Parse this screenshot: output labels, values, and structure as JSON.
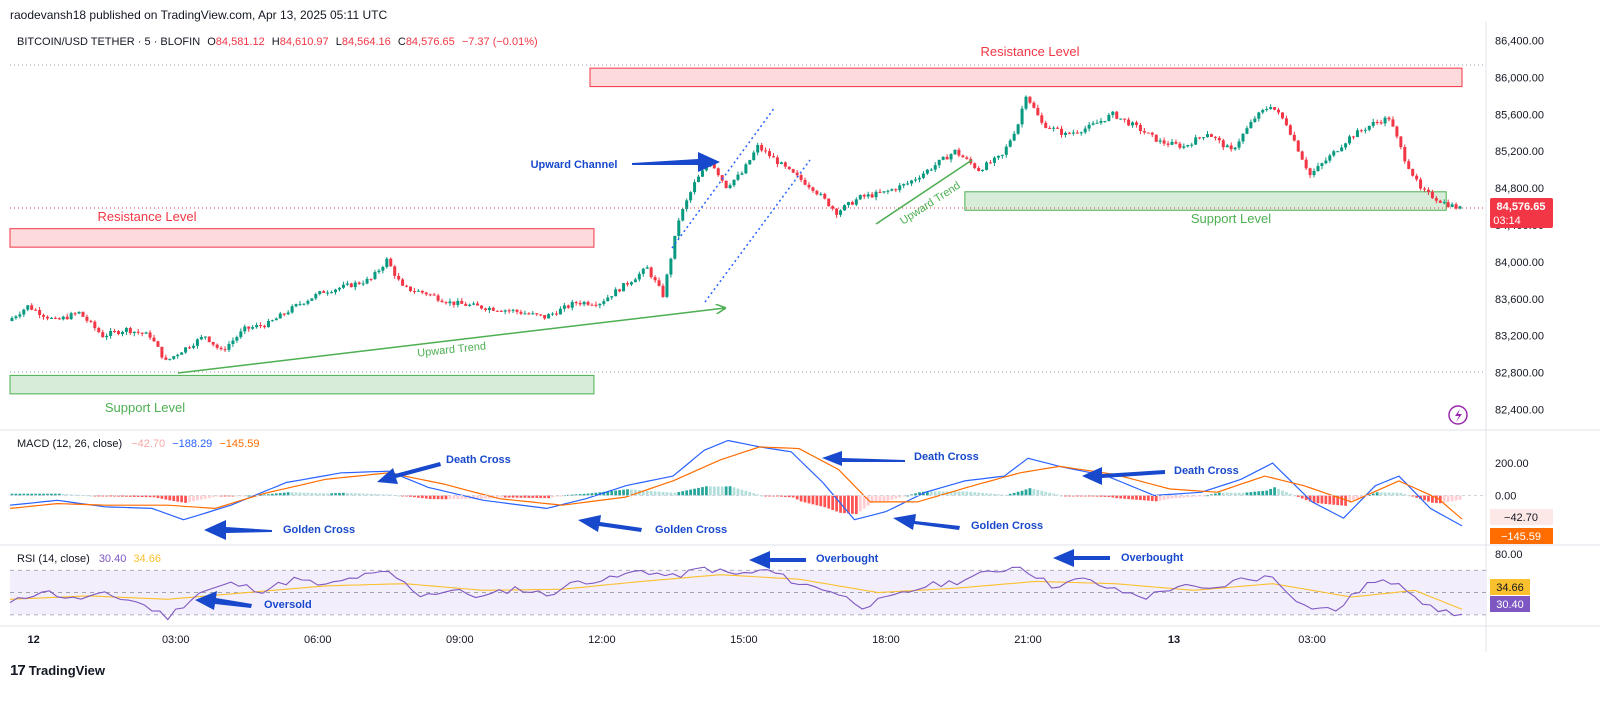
{
  "header": {
    "published_line": "raodevansh18 published on TradingView.com, Apr 13, 2025 05:11 UTC"
  },
  "footer": {
    "brand": "TradingView",
    "logo_glyph": "17"
  },
  "colors": {
    "up": "#089981",
    "down": "#f23645",
    "macd": "#2962ff",
    "signal": "#ff6d00",
    "rsi": "#7e57c2",
    "rsi_ma": "#fbc02d",
    "support": "#4caf50",
    "resistance": "#f23645",
    "annotation": "#1848cc"
  },
  "chart_data": [
    {
      "type": "candlestick",
      "symbol_line": {
        "symbol": "BITCOIN/USD TETHER · 5 · BLOFIN",
        "o_label": "O",
        "o": "84,581.12",
        "h_label": "H",
        "h": "84,610.97",
        "l_label": "L",
        "l": "84,564.16",
        "c_label": "C",
        "c": "84,576.65",
        "change": "−7.37 (−0.01%)"
      },
      "ylim": [
        82200,
        86600
      ],
      "y_ticks": [
        "86,400.00",
        "86,000.00",
        "85,600.00",
        "85,200.00",
        "84,800.00",
        "84,400.00",
        "84,000.00",
        "83,600.00",
        "83,200.00",
        "82,800.00",
        "82,400.00"
      ],
      "x_ticks": [
        "12",
        "03:00",
        "06:00",
        "09:00",
        "12:00",
        "15:00",
        "18:00",
        "21:00",
        "13",
        "03:00"
      ],
      "last_price_label": "84,576.65",
      "countdown_label": "03:14",
      "price_path": [
        {
          "t": 0,
          "p": 83360
        },
        {
          "t": 5,
          "p": 83520
        },
        {
          "t": 12,
          "p": 83360
        },
        {
          "t": 18,
          "p": 83450
        },
        {
          "t": 24,
          "p": 83200
        },
        {
          "t": 30,
          "p": 83270
        },
        {
          "t": 36,
          "p": 83200
        },
        {
          "t": 40,
          "p": 82920
        },
        {
          "t": 44,
          "p": 83040
        },
        {
          "t": 50,
          "p": 83200
        },
        {
          "t": 54,
          "p": 83030
        },
        {
          "t": 60,
          "p": 83270
        },
        {
          "t": 66,
          "p": 83330
        },
        {
          "t": 74,
          "p": 83550
        },
        {
          "t": 80,
          "p": 83680
        },
        {
          "t": 86,
          "p": 83740
        },
        {
          "t": 92,
          "p": 83810
        },
        {
          "t": 96,
          "p": 84020
        },
        {
          "t": 100,
          "p": 83720
        },
        {
          "t": 106,
          "p": 83660
        },
        {
          "t": 112,
          "p": 83560
        },
        {
          "t": 120,
          "p": 83510
        },
        {
          "t": 128,
          "p": 83470
        },
        {
          "t": 136,
          "p": 83400
        },
        {
          "t": 144,
          "p": 83560
        },
        {
          "t": 150,
          "p": 83560
        },
        {
          "t": 156,
          "p": 83740
        },
        {
          "t": 162,
          "p": 83930
        },
        {
          "t": 166,
          "p": 83640
        },
        {
          "t": 170,
          "p": 84460
        },
        {
          "t": 174,
          "p": 84850
        },
        {
          "t": 178,
          "p": 85100
        },
        {
          "t": 182,
          "p": 84820
        },
        {
          "t": 186,
          "p": 84960
        },
        {
          "t": 190,
          "p": 85250
        },
        {
          "t": 194,
          "p": 85120
        },
        {
          "t": 198,
          "p": 84980
        },
        {
          "t": 204,
          "p": 84800
        },
        {
          "t": 210,
          "p": 84540
        },
        {
          "t": 216,
          "p": 84700
        },
        {
          "t": 222,
          "p": 84750
        },
        {
          "t": 228,
          "p": 84850
        },
        {
          "t": 234,
          "p": 85020
        },
        {
          "t": 240,
          "p": 85200
        },
        {
          "t": 246,
          "p": 85000
        },
        {
          "t": 252,
          "p": 85150
        },
        {
          "t": 256,
          "p": 85500
        },
        {
          "t": 258,
          "p": 85820
        },
        {
          "t": 262,
          "p": 85500
        },
        {
          "t": 268,
          "p": 85380
        },
        {
          "t": 274,
          "p": 85460
        },
        {
          "t": 280,
          "p": 85600
        },
        {
          "t": 286,
          "p": 85460
        },
        {
          "t": 292,
          "p": 85300
        },
        {
          "t": 298,
          "p": 85250
        },
        {
          "t": 304,
          "p": 85400
        },
        {
          "t": 310,
          "p": 85200
        },
        {
          "t": 316,
          "p": 85560
        },
        {
          "t": 320,
          "p": 85700
        },
        {
          "t": 324,
          "p": 85500
        },
        {
          "t": 330,
          "p": 84940
        },
        {
          "t": 334,
          "p": 85100
        },
        {
          "t": 340,
          "p": 85350
        },
        {
          "t": 346,
          "p": 85500
        },
        {
          "t": 350,
          "p": 85560
        },
        {
          "t": 354,
          "p": 85120
        },
        {
          "t": 358,
          "p": 84780
        },
        {
          "t": 364,
          "p": 84640
        },
        {
          "t": 368,
          "p": 84577
        }
      ],
      "candle_count": 368,
      "annotations": [
        {
          "text": "Resistance Level",
          "kind": "resistance",
          "zone_top": 86100,
          "zone_bottom": 85900,
          "t_start": 147,
          "t_end": 368
        },
        {
          "text": "Resistance Level",
          "kind": "resistance",
          "zone_top": 84360,
          "zone_bottom": 84160,
          "t_start": 0,
          "t_end": 148
        },
        {
          "text": "Support Level",
          "kind": "support",
          "zone_top": 82770,
          "zone_bottom": 82570,
          "t_start": 0,
          "t_end": 148
        },
        {
          "text": "Support Level",
          "kind": "support",
          "zone_top": 84760,
          "zone_bottom": 84560,
          "t_start": 242,
          "t_end": 364
        },
        {
          "text": "Upward Trend",
          "kind": "trend"
        },
        {
          "text": "Upward Trend",
          "kind": "trend"
        },
        {
          "text": "Upward Channel",
          "kind": "channel"
        }
      ]
    },
    {
      "type": "line",
      "title": "MACD (12, 26, close)",
      "legend_values": [
        "−42.70",
        "−188.29",
        "−145.59"
      ],
      "ylim": [
        -300,
        380
      ],
      "y_ticks": [
        "200.00",
        "0.00"
      ],
      "last_labels": [
        "−42.70",
        "−145.59"
      ],
      "macd_path": [
        {
          "t": 0,
          "p": -60
        },
        {
          "t": 12,
          "p": -30
        },
        {
          "t": 24,
          "p": -70
        },
        {
          "t": 36,
          "p": -80
        },
        {
          "t": 44,
          "p": -150
        },
        {
          "t": 56,
          "p": -60
        },
        {
          "t": 70,
          "p": 80
        },
        {
          "t": 84,
          "p": 140
        },
        {
          "t": 96,
          "p": 150
        },
        {
          "t": 106,
          "p": 50
        },
        {
          "t": 120,
          "p": -30
        },
        {
          "t": 136,
          "p": -80
        },
        {
          "t": 146,
          "p": -20
        },
        {
          "t": 156,
          "p": 60
        },
        {
          "t": 168,
          "p": 120
        },
        {
          "t": 176,
          "p": 280
        },
        {
          "t": 182,
          "p": 340
        },
        {
          "t": 190,
          "p": 300
        },
        {
          "t": 198,
          "p": 270
        },
        {
          "t": 206,
          "p": 80
        },
        {
          "t": 214,
          "p": -150
        },
        {
          "t": 222,
          "p": -100
        },
        {
          "t": 232,
          "p": 20
        },
        {
          "t": 242,
          "p": 90
        },
        {
          "t": 252,
          "p": 120
        },
        {
          "t": 258,
          "p": 230
        },
        {
          "t": 266,
          "p": 180
        },
        {
          "t": 278,
          "p": 120
        },
        {
          "t": 290,
          "p": 0
        },
        {
          "t": 302,
          "p": 20
        },
        {
          "t": 312,
          "p": 100
        },
        {
          "t": 320,
          "p": 200
        },
        {
          "t": 330,
          "p": -40
        },
        {
          "t": 338,
          "p": -140
        },
        {
          "t": 346,
          "p": 60
        },
        {
          "t": 352,
          "p": 120
        },
        {
          "t": 360,
          "p": -80
        },
        {
          "t": 368,
          "p": -188
        }
      ],
      "signal_path": [
        {
          "t": 0,
          "p": -80
        },
        {
          "t": 12,
          "p": -50
        },
        {
          "t": 24,
          "p": -60
        },
        {
          "t": 40,
          "p": -60
        },
        {
          "t": 52,
          "p": -80
        },
        {
          "t": 64,
          "p": 10
        },
        {
          "t": 80,
          "p": 100
        },
        {
          "t": 96,
          "p": 140
        },
        {
          "t": 110,
          "p": 70
        },
        {
          "t": 124,
          "p": -20
        },
        {
          "t": 140,
          "p": -60
        },
        {
          "t": 156,
          "p": -10
        },
        {
          "t": 168,
          "p": 90
        },
        {
          "t": 180,
          "p": 220
        },
        {
          "t": 190,
          "p": 300
        },
        {
          "t": 200,
          "p": 290
        },
        {
          "t": 210,
          "p": 160
        },
        {
          "t": 218,
          "p": -40
        },
        {
          "t": 230,
          "p": -40
        },
        {
          "t": 244,
          "p": 60
        },
        {
          "t": 256,
          "p": 140
        },
        {
          "t": 266,
          "p": 180
        },
        {
          "t": 280,
          "p": 130
        },
        {
          "t": 294,
          "p": 40
        },
        {
          "t": 306,
          "p": 20
        },
        {
          "t": 318,
          "p": 120
        },
        {
          "t": 328,
          "p": 60
        },
        {
          "t": 340,
          "p": -40
        },
        {
          "t": 352,
          "p": 90
        },
        {
          "t": 362,
          "p": -20
        },
        {
          "t": 368,
          "p": -146
        }
      ],
      "annotations": [
        {
          "text": "Death Cross"
        },
        {
          "text": "Death Cross"
        },
        {
          "text": "Death Cross"
        },
        {
          "text": "Golden Cross"
        },
        {
          "text": "Golden Cross"
        },
        {
          "text": "Golden Cross"
        }
      ]
    },
    {
      "type": "line",
      "title": "RSI (14, close)",
      "legend_values": [
        "30.40",
        "34.66"
      ],
      "ylim": [
        20,
        90
      ],
      "bands": [
        70,
        50,
        30
      ],
      "y_ticks": [
        "80.00"
      ],
      "last_labels": [
        "34.66",
        "30.40"
      ],
      "rsi_path": [
        {
          "t": 0,
          "p": 40
        },
        {
          "t": 8,
          "p": 52
        },
        {
          "t": 16,
          "p": 44
        },
        {
          "t": 24,
          "p": 48
        },
        {
          "t": 32,
          "p": 42
        },
        {
          "t": 40,
          "p": 28
        },
        {
          "t": 48,
          "p": 50
        },
        {
          "t": 56,
          "p": 58
        },
        {
          "t": 64,
          "p": 52
        },
        {
          "t": 72,
          "p": 62
        },
        {
          "t": 80,
          "p": 56
        },
        {
          "t": 88,
          "p": 64
        },
        {
          "t": 96,
          "p": 68
        },
        {
          "t": 104,
          "p": 48
        },
        {
          "t": 112,
          "p": 52
        },
        {
          "t": 120,
          "p": 46
        },
        {
          "t": 128,
          "p": 54
        },
        {
          "t": 136,
          "p": 48
        },
        {
          "t": 144,
          "p": 60
        },
        {
          "t": 152,
          "p": 62
        },
        {
          "t": 160,
          "p": 70
        },
        {
          "t": 168,
          "p": 64
        },
        {
          "t": 176,
          "p": 72
        },
        {
          "t": 184,
          "p": 66
        },
        {
          "t": 192,
          "p": 70
        },
        {
          "t": 200,
          "p": 58
        },
        {
          "t": 208,
          "p": 52
        },
        {
          "t": 216,
          "p": 38
        },
        {
          "t": 224,
          "p": 46
        },
        {
          "t": 232,
          "p": 56
        },
        {
          "t": 240,
          "p": 60
        },
        {
          "t": 248,
          "p": 68
        },
        {
          "t": 256,
          "p": 74
        },
        {
          "t": 264,
          "p": 56
        },
        {
          "t": 272,
          "p": 62
        },
        {
          "t": 280,
          "p": 52
        },
        {
          "t": 288,
          "p": 46
        },
        {
          "t": 296,
          "p": 56
        },
        {
          "t": 304,
          "p": 52
        },
        {
          "t": 312,
          "p": 62
        },
        {
          "t": 320,
          "p": 64
        },
        {
          "t": 328,
          "p": 38
        },
        {
          "t": 336,
          "p": 34
        },
        {
          "t": 344,
          "p": 58
        },
        {
          "t": 352,
          "p": 60
        },
        {
          "t": 360,
          "p": 36
        },
        {
          "t": 368,
          "p": 30
        }
      ],
      "rsi_ma_path": [
        {
          "t": 0,
          "p": 44
        },
        {
          "t": 20,
          "p": 47
        },
        {
          "t": 40,
          "p": 44
        },
        {
          "t": 60,
          "p": 50
        },
        {
          "t": 80,
          "p": 56
        },
        {
          "t": 100,
          "p": 58
        },
        {
          "t": 120,
          "p": 52
        },
        {
          "t": 140,
          "p": 53
        },
        {
          "t": 160,
          "p": 60
        },
        {
          "t": 180,
          "p": 66
        },
        {
          "t": 200,
          "p": 62
        },
        {
          "t": 220,
          "p": 50
        },
        {
          "t": 240,
          "p": 54
        },
        {
          "t": 260,
          "p": 60
        },
        {
          "t": 280,
          "p": 58
        },
        {
          "t": 300,
          "p": 52
        },
        {
          "t": 320,
          "p": 58
        },
        {
          "t": 340,
          "p": 46
        },
        {
          "t": 356,
          "p": 52
        },
        {
          "t": 368,
          "p": 35
        }
      ],
      "annotations": [
        {
          "text": "Oversold"
        },
        {
          "text": "Overbought"
        },
        {
          "text": "Overbought"
        }
      ]
    }
  ]
}
